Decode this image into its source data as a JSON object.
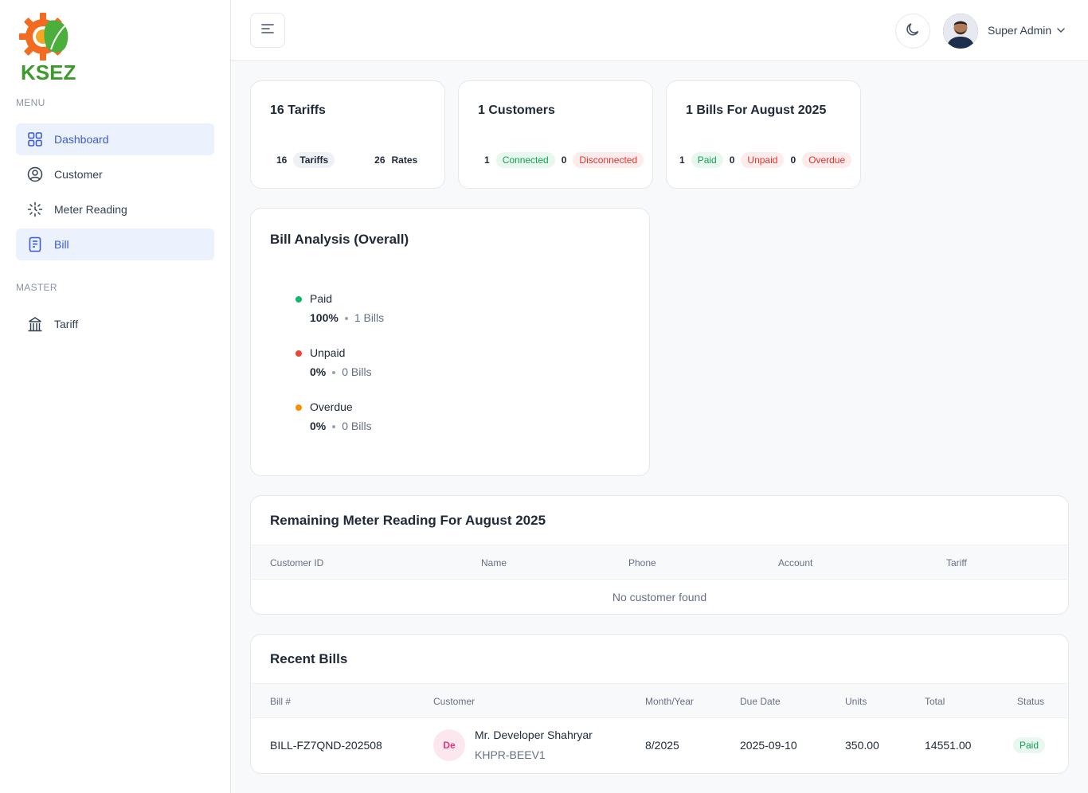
{
  "brand": {
    "name": "KSEZ"
  },
  "sidebar": {
    "menu_label": "MENU",
    "master_label": "MASTER",
    "items": [
      {
        "label": "Dashboard",
        "icon": "grid-icon"
      },
      {
        "label": "Customer",
        "icon": "user-circle-icon"
      },
      {
        "label": "Meter Reading",
        "icon": "loader-icon"
      },
      {
        "label": "Bill",
        "icon": "document-icon"
      }
    ],
    "master_items": [
      {
        "label": "Tariff",
        "icon": "building-icon"
      }
    ]
  },
  "header": {
    "user_name": "Super Admin"
  },
  "stats": {
    "tariffs": {
      "title": "16 Tariffs",
      "count1": "16",
      "label1": "Tariffs",
      "count2": "26",
      "label2": "Rates"
    },
    "customers": {
      "title": "1 Customers",
      "count1": "1",
      "label1": "Connected",
      "count2": "0",
      "label2": "Disconnected"
    },
    "bills": {
      "title": "1 Bills For August 2025",
      "count1": "1",
      "label1": "Paid",
      "count2": "0",
      "label2": "Unpaid",
      "count3": "0",
      "label3": "Overdue"
    }
  },
  "bill_analysis": {
    "title": "Bill Analysis (Overall)",
    "items": [
      {
        "name": "Paid",
        "percent": "100%",
        "bills": "1 Bills",
        "color": "#12b76a"
      },
      {
        "name": "Unpaid",
        "percent": "0%",
        "bills": "0 Bills",
        "color": "#f04438"
      },
      {
        "name": "Overdue",
        "percent": "0%",
        "bills": "0 Bills",
        "color": "#f79009"
      }
    ]
  },
  "remaining": {
    "title": "Remaining Meter Reading For August 2025",
    "columns": [
      "Customer ID",
      "Name",
      "Phone",
      "Account",
      "Tariff"
    ],
    "empty": "No customer found"
  },
  "recent_bills": {
    "title": "Recent Bills",
    "columns": [
      "Bill #",
      "Customer",
      "Month/Year",
      "Due Date",
      "Units",
      "Total",
      "Status"
    ],
    "rows": [
      {
        "bill_no": "BILL-FZ7QND-202508",
        "initials": "De",
        "customer_name": "Mr. Developer Shahryar",
        "customer_code": "KHPR-BEEV1",
        "month_year": "8/2025",
        "due_date": "2025-09-10",
        "units": "350.00",
        "total": "14551.00",
        "status": "Paid"
      }
    ]
  },
  "colors": {
    "accent": "#3a5bd9",
    "accent_bg": "#ecf1fe",
    "success": "#12a150",
    "danger": "#e0342f"
  }
}
